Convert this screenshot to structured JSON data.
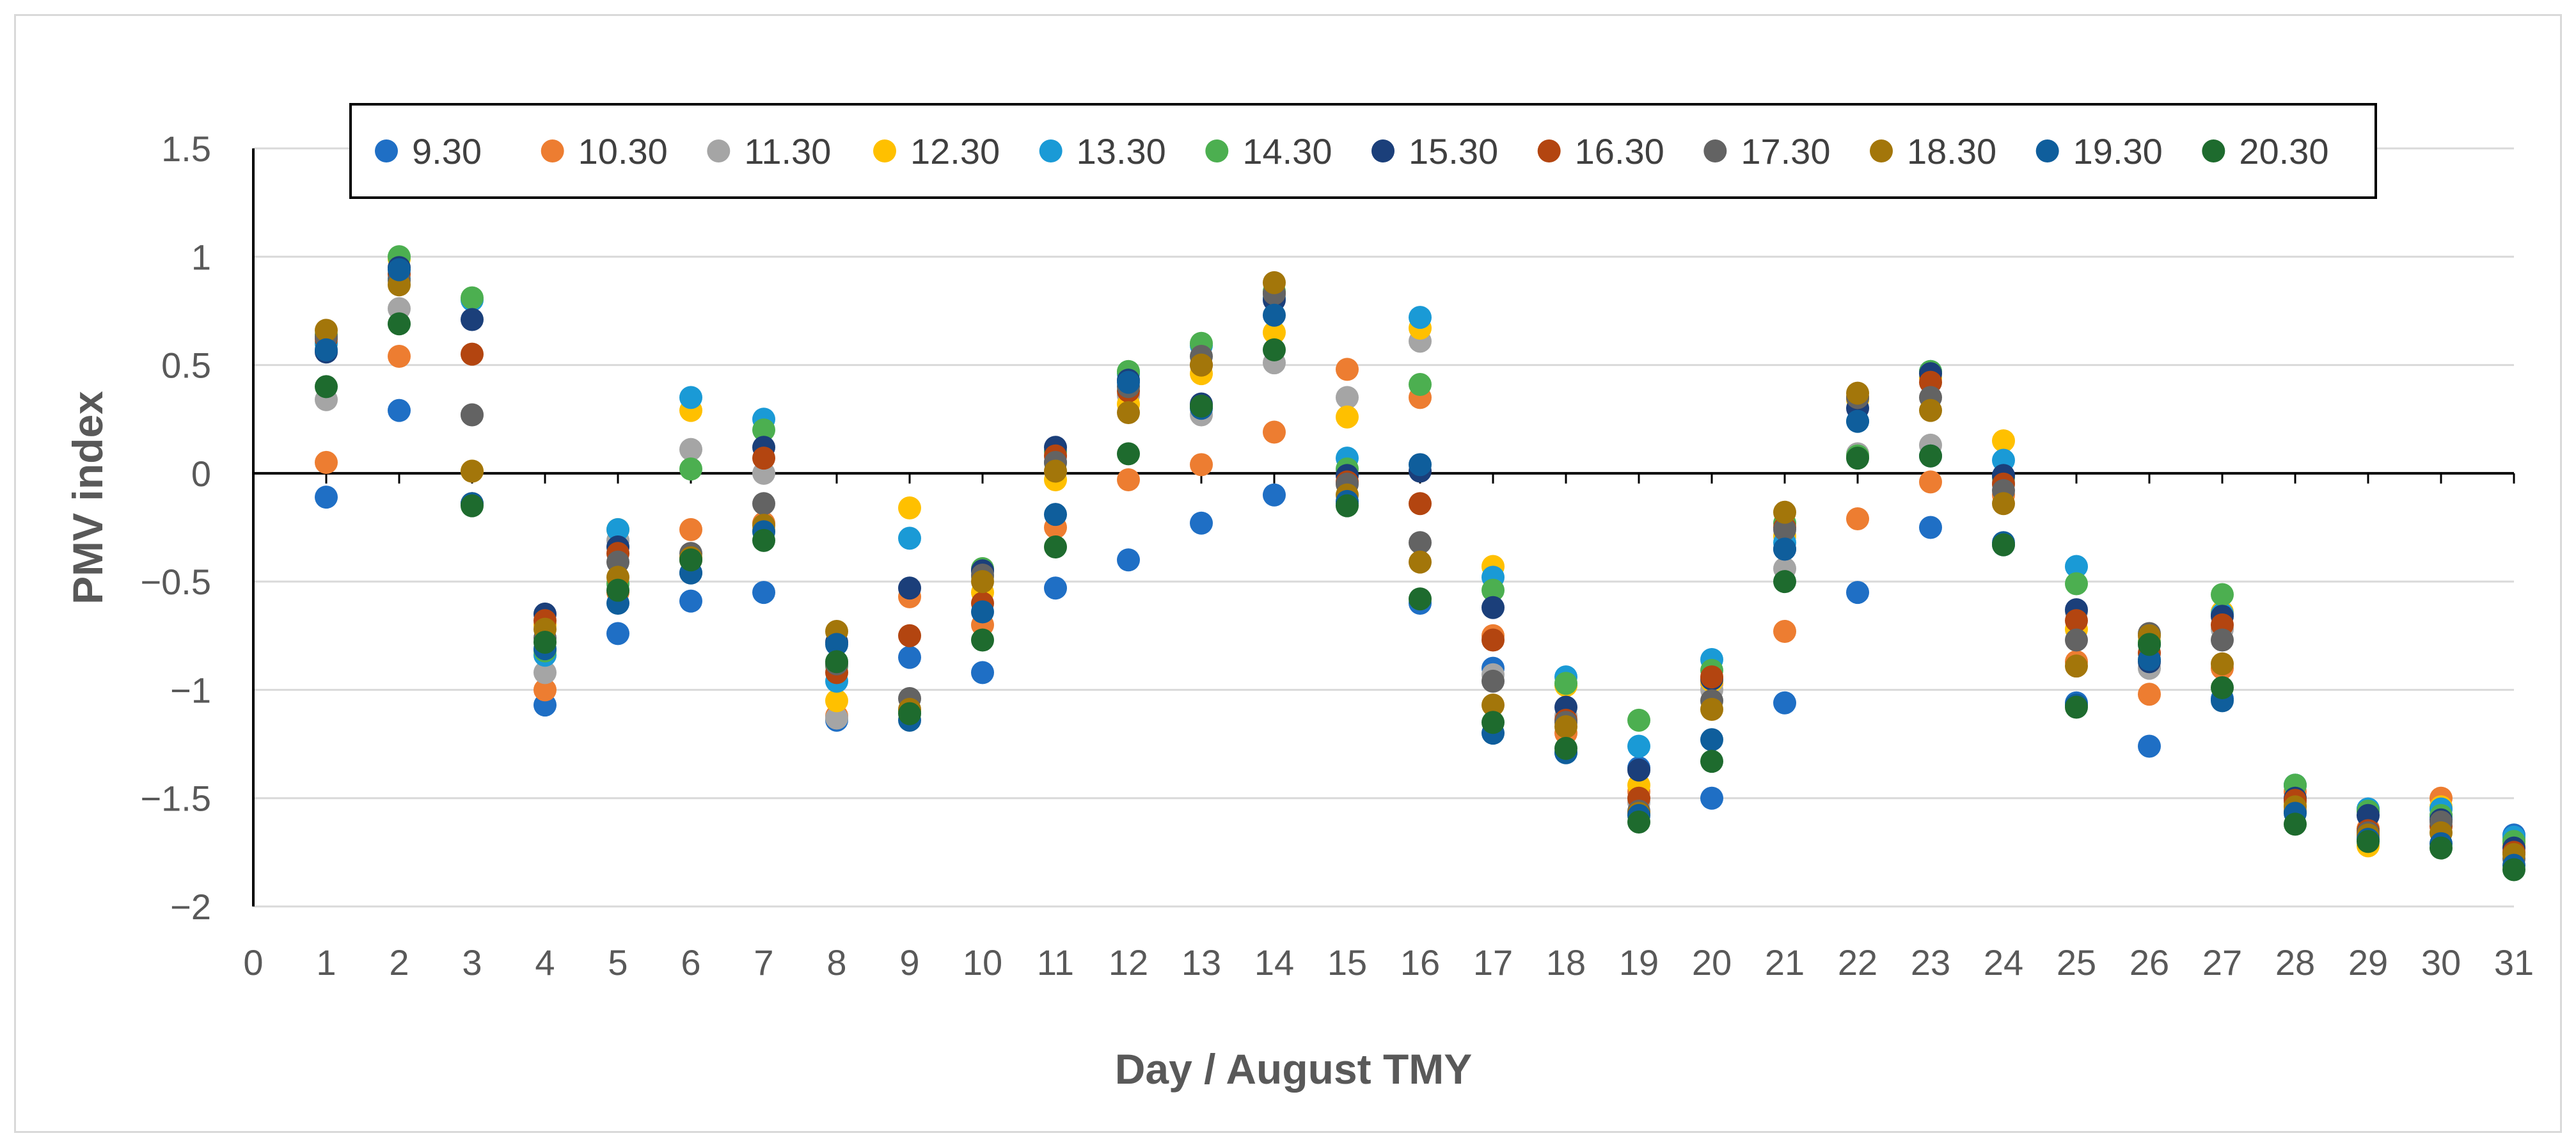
{
  "chart_data": {
    "type": "scatter",
    "title": "",
    "xlabel": "Day / August TMY",
    "ylabel": "PMV index",
    "xlim": [
      0,
      31
    ],
    "ylim": [
      -2,
      1.5
    ],
    "x_ticks": [
      "0",
      "1",
      "2",
      "3",
      "4",
      "5",
      "6",
      "7",
      "8",
      "9",
      "10",
      "11",
      "12",
      "13",
      "14",
      "15",
      "16",
      "17",
      "18",
      "19",
      "20",
      "21",
      "22",
      "23",
      "24",
      "25",
      "26",
      "27",
      "28",
      "29",
      "30",
      "31"
    ],
    "y_ticks": [
      "1.5",
      "1",
      "0.5",
      "0",
      "−0.5",
      "−1",
      "−1.5",
      "−2"
    ],
    "y_tick_values": [
      1.5,
      1,
      0.5,
      0,
      -0.5,
      -1,
      -1.5,
      -2
    ],
    "grid": "horizontal",
    "legend_position": "top",
    "x": [
      1,
      2,
      3,
      4,
      5,
      6,
      7,
      8,
      9,
      10,
      11,
      12,
      13,
      14,
      15,
      16,
      17,
      18,
      19,
      20,
      21,
      22,
      23,
      24,
      25,
      26,
      27,
      28,
      29,
      30,
      31
    ],
    "series": [
      {
        "name": "9.30",
        "color": "#1f6fc5",
        "values": [
          -0.11,
          0.29,
          -0.14,
          -1.07,
          -0.74,
          -0.59,
          -0.55,
          -1.14,
          -0.85,
          -0.92,
          -0.53,
          -0.4,
          -0.23,
          -0.1,
          -0.14,
          -0.6,
          -0.9,
          -1.29,
          -1.36,
          -1.5,
          -1.06,
          -0.55,
          -0.25,
          -0.33,
          -1.06,
          -1.26,
          -1.04,
          -1.44,
          -1.55,
          -1.58,
          -1.67
        ]
      },
      {
        "name": "10.30",
        "color": "#ed7d31",
        "values": [
          0.05,
          0.54,
          -0.14,
          -1.0,
          -0.55,
          -0.26,
          -0.23,
          -1.12,
          -0.57,
          -0.7,
          -0.25,
          -0.03,
          0.04,
          0.19,
          0.48,
          0.35,
          -0.75,
          -1.2,
          -1.47,
          -0.97,
          -0.73,
          -0.21,
          -0.04,
          -0.1,
          -0.87,
          -1.02,
          -0.9,
          -1.47,
          -1.64,
          -1.5,
          -1.69
        ]
      },
      {
        "name": "11.30",
        "color": "#a5a5a5",
        "values": [
          0.34,
          0.76,
          0.27,
          -0.92,
          -0.31,
          0.11,
          0.0,
          -1.13,
          -1.1,
          -0.48,
          0.01,
          0.36,
          0.27,
          0.51,
          0.35,
          0.61,
          -0.93,
          -1.12,
          -1.52,
          -1.0,
          -0.44,
          0.09,
          0.13,
          -0.04,
          -0.64,
          -0.9,
          -0.72,
          -1.52,
          -1.68,
          -1.55,
          -1.72
        ]
      },
      {
        "name": "12.30",
        "color": "#ffc000",
        "values": [
          0.6,
          0.99,
          0.01,
          -0.7,
          -0.26,
          0.29,
          -0.26,
          -1.05,
          -0.16,
          -0.55,
          -0.03,
          0.32,
          0.46,
          0.65,
          0.26,
          0.67,
          -0.43,
          -0.98,
          -1.44,
          -0.96,
          -0.29,
          0.34,
          0.44,
          0.15,
          -0.72,
          -0.78,
          -0.64,
          -1.53,
          -1.72,
          -1.54,
          -1.71
        ]
      },
      {
        "name": "13.30",
        "color": "#1a9ad6",
        "values": [
          0.6,
          0.9,
          0.8,
          -0.84,
          -0.26,
          0.35,
          0.25,
          -0.96,
          -0.3,
          -0.45,
          0.05,
          0.46,
          0.59,
          0.81,
          0.07,
          0.72,
          -0.48,
          -0.94,
          -1.26,
          -0.86,
          -0.32,
          0.24,
          0.47,
          0.06,
          -0.43,
          -0.79,
          -0.65,
          -1.44,
          -1.55,
          -1.55,
          -1.68
        ]
      },
      {
        "name": "14.30",
        "color": "#4caf50",
        "values": [
          0.64,
          1.0,
          0.81,
          -0.82,
          -0.51,
          0.02,
          0.2,
          -0.89,
          -1.1,
          -0.44,
          0.1,
          0.47,
          0.6,
          0.84,
          0.02,
          0.41,
          -0.54,
          -0.97,
          -1.14,
          -0.91,
          -0.23,
          0.08,
          0.47,
          -0.02,
          -0.51,
          -0.78,
          -0.56,
          -1.44,
          -1.56,
          -1.58,
          -1.7
        ]
      },
      {
        "name": "15.30",
        "color": "#1b3f7a",
        "values": [
          0.56,
          0.95,
          0.71,
          -0.65,
          -0.34,
          -0.46,
          0.12,
          -0.78,
          -0.53,
          -0.45,
          0.12,
          0.43,
          0.32,
          0.8,
          -0.01,
          0.01,
          -0.62,
          -1.08,
          -1.37,
          -0.95,
          -0.35,
          0.3,
          0.46,
          -0.01,
          -0.63,
          -0.87,
          -0.66,
          -1.5,
          -1.58,
          -1.6,
          -1.73
        ]
      },
      {
        "name": "16.30",
        "color": "#b34510",
        "values": [
          0.62,
          0.92,
          0.55,
          -0.68,
          -0.37,
          -0.4,
          0.07,
          -0.92,
          -0.75,
          -0.6,
          0.08,
          0.38,
          0.5,
          0.83,
          -0.04,
          -0.14,
          -0.77,
          -1.14,
          -1.5,
          -0.94,
          -0.25,
          0.35,
          0.42,
          -0.05,
          -0.68,
          -0.83,
          -0.7,
          -1.51,
          -1.65,
          -1.63,
          -1.75
        ]
      },
      {
        "name": "17.30",
        "color": "#636363",
        "values": [
          0.63,
          0.89,
          0.27,
          -0.76,
          -0.41,
          -0.37,
          -0.14,
          -0.88,
          -1.04,
          -0.47,
          0.05,
          0.4,
          0.54,
          0.83,
          -0.05,
          -0.32,
          -0.96,
          -1.15,
          -1.56,
          -1.05,
          -0.26,
          0.35,
          0.35,
          -0.08,
          -0.77,
          -0.74,
          -0.77,
          -1.56,
          -1.66,
          -1.61,
          -1.78
        ]
      },
      {
        "name": "18.30",
        "color": "#a3760a",
        "values": [
          0.66,
          0.87,
          0.01,
          -0.72,
          -0.48,
          -0.39,
          -0.24,
          -0.73,
          -1.09,
          -0.5,
          0.01,
          0.28,
          0.5,
          0.88,
          -0.1,
          -0.41,
          -1.07,
          -1.17,
          -1.57,
          -1.09,
          -0.18,
          0.37,
          0.29,
          -0.14,
          -0.89,
          -0.75,
          -0.88,
          -1.54,
          -1.67,
          -1.66,
          -1.76
        ]
      },
      {
        "name": "19.30",
        "color": "#0f5e9c",
        "values": [
          0.57,
          0.94,
          -0.14,
          -0.81,
          -0.6,
          -0.46,
          -0.27,
          -0.79,
          -1.14,
          -0.64,
          -0.19,
          0.42,
          0.3,
          0.73,
          -0.13,
          0.04,
          -1.2,
          -1.29,
          -1.58,
          -1.23,
          -0.35,
          0.24,
          0.08,
          -0.32,
          -1.07,
          -0.86,
          -1.05,
          -1.57,
          -1.69,
          -1.71,
          -1.81
        ]
      },
      {
        "name": "20.30",
        "color": "#1e6b2e",
        "values": [
          0.4,
          0.69,
          -0.15,
          -0.78,
          -0.54,
          -0.4,
          -0.31,
          -0.87,
          -1.11,
          -0.77,
          -0.34,
          0.09,
          0.31,
          0.57,
          -0.15,
          -0.58,
          -1.15,
          -1.27,
          -1.61,
          -1.33,
          -0.5,
          0.07,
          0.08,
          -0.33,
          -1.08,
          -0.79,
          -0.99,
          -1.62,
          -1.7,
          -1.73,
          -1.83
        ]
      }
    ]
  }
}
